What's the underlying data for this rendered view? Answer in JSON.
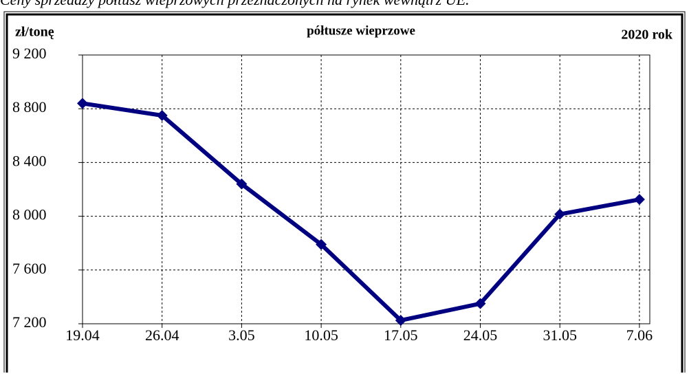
{
  "chart_data": {
    "type": "line",
    "caption": "Ceny sprzedaży półtusz wieprzowych przeznaczonych na rynek wewnątrz UE.",
    "title": "półtusze wieprzowe",
    "y_label": "zł/tonę",
    "annotation": "2020 rok",
    "categories": [
      "19.04",
      "26.04",
      "3.05",
      "10.05",
      "17.05",
      "24.05",
      "31.05",
      "7.06"
    ],
    "series": [
      {
        "name": "półtusze wieprzowe",
        "color": "#000080",
        "values": [
          8840,
          8750,
          8240,
          7790,
          7225,
          7350,
          8015,
          8125
        ]
      }
    ],
    "ylim": [
      7200,
      9200
    ],
    "yticks": [
      {
        "value": 7200,
        "label": "7 200"
      },
      {
        "value": 7600,
        "label": "7 600"
      },
      {
        "value": 8000,
        "label": "8 000"
      },
      {
        "value": 8400,
        "label": "8 400"
      },
      {
        "value": 8800,
        "label": "8 800"
      },
      {
        "value": 9200,
        "label": "9 200"
      }
    ],
    "grid": true
  }
}
